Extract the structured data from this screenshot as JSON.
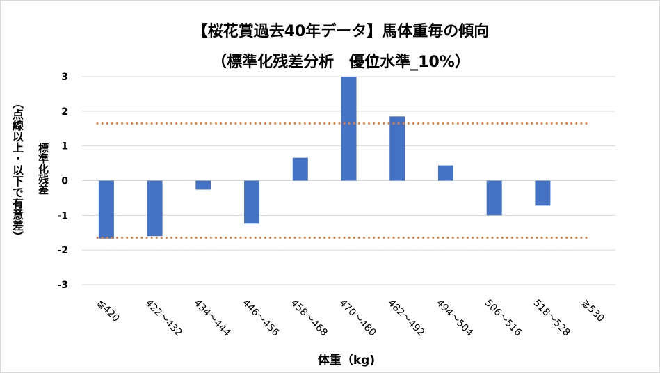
{
  "chart_data": {
    "type": "bar",
    "title": "【桜花賞過去40年データ】馬体重毎の傾向",
    "subtitle": "（標準化残差分析　優位水準_10%）",
    "xlabel": "体重（kg)",
    "ylabel": "標準化残差",
    "ylabel_note": "（点線以上・以下で有意差）",
    "categories": [
      "≦420",
      "422～432",
      "434～444",
      "446～456",
      "458～468",
      "470～480",
      "482～492",
      "494～504",
      "506～516",
      "518～528",
      "≧530"
    ],
    "values": [
      -1.67,
      -1.6,
      -0.26,
      -1.24,
      0.66,
      3.0,
      1.85,
      0.44,
      -1.0,
      -0.72,
      0
    ],
    "ylim": [
      -3,
      3
    ],
    "yticks": [
      "3",
      "2",
      "1",
      "0",
      "-1",
      "-2",
      "-3"
    ],
    "threshold_lines": [
      1.645,
      -1.645
    ],
    "grid": true,
    "colors": {
      "bar": "#4472c4",
      "threshold": "#ed7d31",
      "grid": "#d9d9d9"
    }
  }
}
